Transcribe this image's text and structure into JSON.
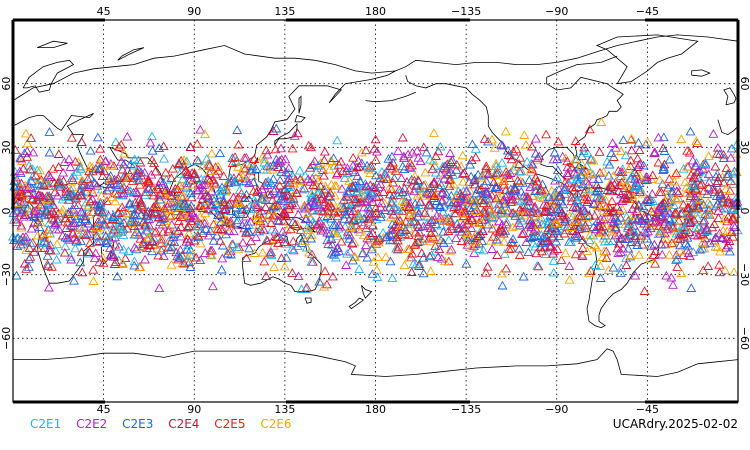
{
  "map": {
    "projection": "cylindrical-equidistant",
    "center_longitude": 180,
    "lon_range": [
      0,
      360
    ],
    "lat_range": [
      -90,
      90
    ],
    "grid": "dotted",
    "lon_ticks": [
      {
        "lon": 45,
        "label": "45"
      },
      {
        "lon": 90,
        "label": "90"
      },
      {
        "lon": 135,
        "label": "135"
      },
      {
        "lon": 180,
        "label": "180"
      },
      {
        "lon": 225,
        "label": "−135"
      },
      {
        "lon": 270,
        "label": "−90"
      },
      {
        "lon": 315,
        "label": "−45"
      }
    ],
    "lat_ticks": [
      {
        "lat": 60,
        "label": "60"
      },
      {
        "lat": 30,
        "label": "30"
      },
      {
        "lat": 0,
        "label": "0"
      },
      {
        "lat": -30,
        "label": "−30"
      },
      {
        "lat": -60,
        "label": "−60"
      }
    ],
    "observations": {
      "marker": "triangle-outline",
      "lat_band": [
        -42,
        45
      ],
      "lon_band": [
        0,
        360
      ],
      "approx_count": 3000
    }
  },
  "legend": [
    {
      "label": "C2E1",
      "color": "#22b4e6"
    },
    {
      "label": "C2E2",
      "color": "#b41ec8"
    },
    {
      "label": "C2E3",
      "color": "#1e64dc"
    },
    {
      "label": "C2E4",
      "color": "#c8143c"
    },
    {
      "label": "C2E5",
      "color": "#e61e1e"
    },
    {
      "label": "C2E6",
      "color": "#f5a50a"
    }
  ],
  "stamp": "UCARdry.2025-02-02"
}
